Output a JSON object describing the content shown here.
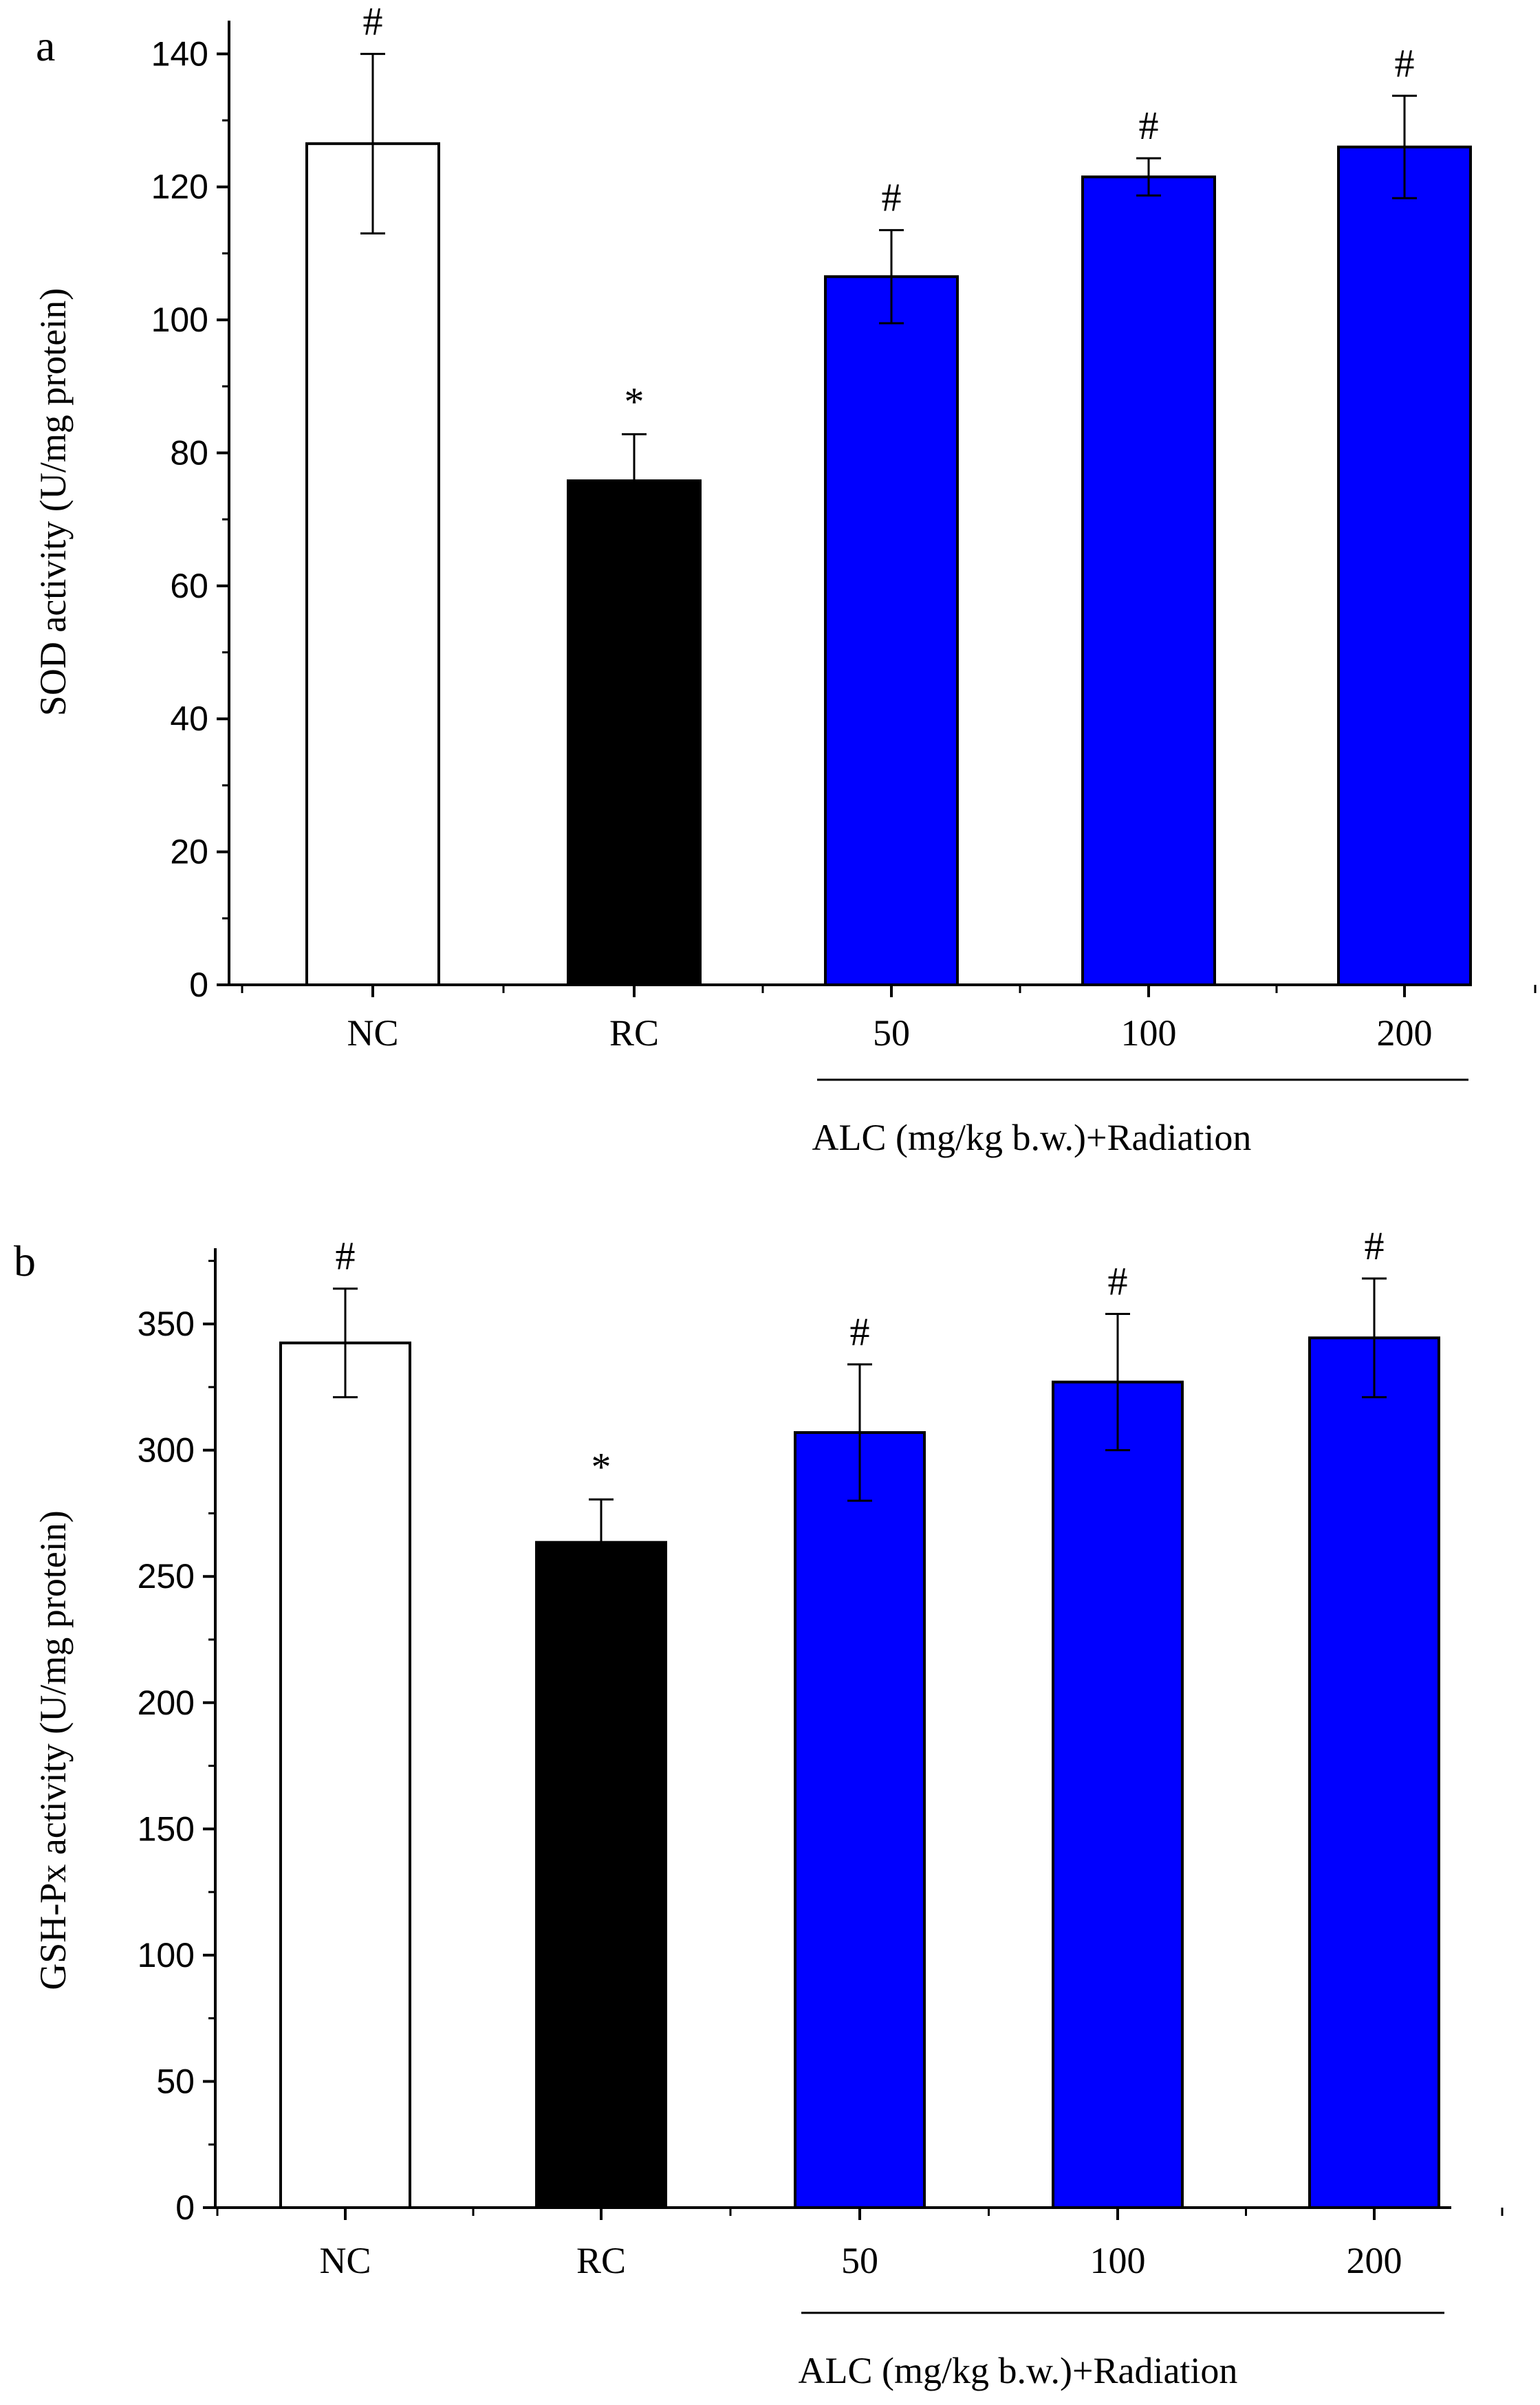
{
  "figure": {
    "colors": {
      "NC": "#ffffff",
      "RC": "#000000",
      "ALC": "#0000ff",
      "axis": "#000000"
    }
  },
  "chart_data": [
    {
      "panel": "a",
      "type": "bar",
      "ylabel": "SOD activity (U/mg protein)",
      "xlabel": "",
      "ylim": [
        0,
        145
      ],
      "yticks": [
        0,
        20,
        40,
        60,
        80,
        100,
        120,
        140
      ],
      "categories": [
        "NC",
        "RC",
        "50",
        "100",
        "200"
      ],
      "values": [
        126.5,
        75.8,
        106.5,
        121.5,
        126.0
      ],
      "errors": [
        13.5,
        7.0,
        7.0,
        2.8,
        7.7
      ],
      "significance": [
        "#",
        "*",
        "#",
        "#",
        "#"
      ],
      "bar_colors": [
        "#ffffff",
        "#000000",
        "#0000ff",
        "#0000ff",
        "#0000ff"
      ],
      "group_label": "ALC (mg/kg b.w.)+Radiation"
    },
    {
      "panel": "b",
      "type": "bar",
      "ylabel": "GSH-Px activity (U/mg protein)",
      "xlabel": "",
      "ylim": [
        0,
        380
      ],
      "yticks": [
        0,
        50,
        100,
        150,
        200,
        250,
        300,
        350
      ],
      "categories": [
        "NC",
        "RC",
        "50",
        "100",
        "200"
      ],
      "values": [
        342.5,
        263.5,
        307.0,
        327.0,
        344.5
      ],
      "errors": [
        21.5,
        17.0,
        27.0,
        27.0,
        23.5
      ],
      "significance": [
        "#",
        "*",
        "#",
        "#",
        "#"
      ],
      "bar_colors": [
        "#ffffff",
        "#000000",
        "#0000ff",
        "#0000ff",
        "#0000ff"
      ],
      "group_label": "ALC (mg/kg b.w.)+Radiation"
    }
  ]
}
